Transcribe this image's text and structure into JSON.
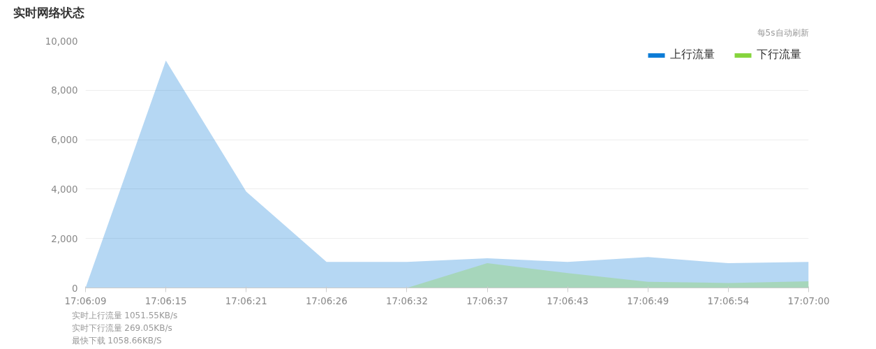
{
  "chart_data": {
    "type": "area",
    "title": "实时网络状态",
    "subtitle": "每5s自动刷新",
    "categories": [
      "17:06:09",
      "17:06:15",
      "17:06:21",
      "17:06:26",
      "17:06:32",
      "17:06:37",
      "17:06:43",
      "17:06:49",
      "17:06:54",
      "17:07:00"
    ],
    "series": [
      {
        "name": "上行流量",
        "color": "#0b7bd6",
        "values": [
          0,
          9200,
          3900,
          1050,
          1050,
          1200,
          1050,
          1250,
          1000,
          1050
        ]
      },
      {
        "name": "下行流量",
        "color": "#85d43c",
        "values": [
          0,
          0,
          0,
          0,
          0,
          1000,
          600,
          250,
          200,
          270
        ]
      }
    ],
    "ylim": [
      0,
      10000
    ],
    "yticks": [
      {
        "value": 0,
        "label": "0"
      },
      {
        "value": 2000,
        "label": "2,000"
      },
      {
        "value": 4000,
        "label": "4,000"
      },
      {
        "value": 6000,
        "label": "6,000"
      },
      {
        "value": 8000,
        "label": "8,000"
      },
      {
        "value": 10000,
        "label": "10,000"
      }
    ],
    "grid": "y",
    "legend": "top right",
    "annotations": [
      "实时上行流量 1051.55KB/s",
      "实时下行流量 269.05KB/s",
      "最快下载 1058.66KB/S"
    ]
  }
}
